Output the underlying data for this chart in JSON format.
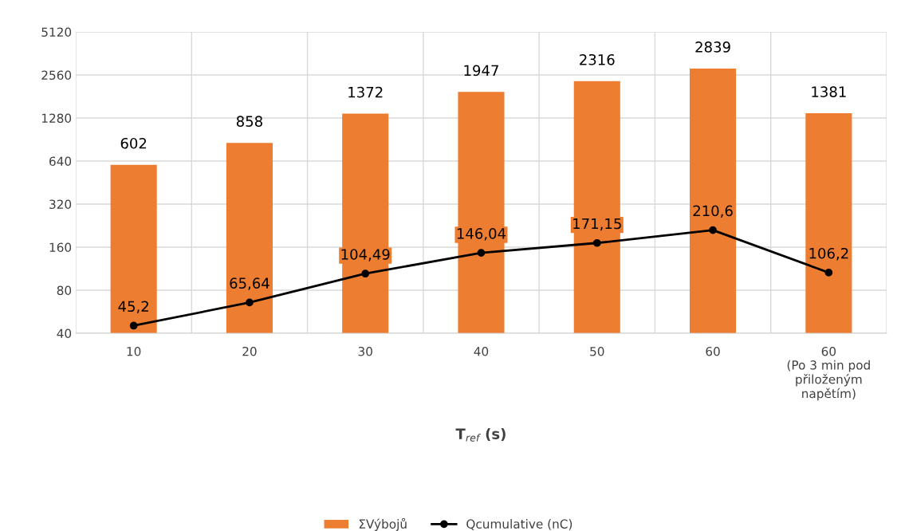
{
  "chart_data": {
    "type": "bar",
    "xlabel": "T$_{ref}$ (s)",
    "categories": [
      "10",
      "20",
      "30",
      "40",
      "50",
      "60",
      "60\n(Po 3 min pod\npřiloženým\nnapětím)"
    ],
    "series": [
      {
        "name": "ΣVýbojů",
        "color": "#ed7d31",
        "values": [
          602,
          858,
          1372,
          1947,
          2316,
          2839,
          1381
        ],
        "value_labels": [
          "602",
          "858",
          "1372",
          "1947",
          "2316",
          "2839",
          "1381"
        ]
      },
      {
        "name": "Qcumulative (nC)",
        "type": "line",
        "color": "#000000",
        "marker": "circle",
        "line_style": "solid",
        "values": [
          45.2,
          65.64,
          104.49,
          146.04,
          171.15,
          210.6,
          106.2
        ],
        "value_labels": [
          "45,2",
          "65,64",
          "104,49",
          "146,04",
          "171,15",
          "210,6",
          "106,2"
        ]
      }
    ],
    "log": "y",
    "ylim": [
      40,
      5120
    ],
    "yticks": [
      40,
      80,
      160,
      320,
      640,
      1280,
      2560,
      5120
    ],
    "grid": true,
    "legend": "bottom"
  }
}
